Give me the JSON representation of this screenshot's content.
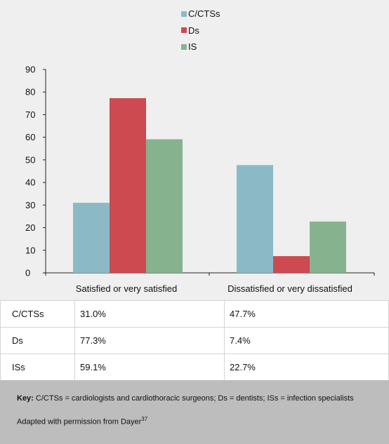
{
  "chart_data": {
    "type": "bar",
    "categories": [
      "Satisfied or very satisfied",
      "Dissatisfied or very dissatisfied"
    ],
    "series": [
      {
        "name": "C/CTSs",
        "values": [
          31.0,
          47.7
        ]
      },
      {
        "name": "Ds",
        "values": [
          77.3,
          7.4
        ]
      },
      {
        "name": "IS",
        "values": [
          59.1,
          22.7
        ]
      }
    ],
    "ylim": [
      0,
      90
    ],
    "yticks": [
      0,
      10,
      20,
      30,
      40,
      50,
      60,
      70,
      80,
      90
    ],
    "colors": [
      "#8cb9c6",
      "#cc4a50",
      "#86b38e"
    ],
    "legend_position": "top-center",
    "grid": false
  },
  "table": {
    "rows": [
      {
        "label": "C/CTSs",
        "cells": [
          "31.0%",
          "47.7%"
        ]
      },
      {
        "label": "Ds",
        "cells": [
          "77.3%",
          "7.4%"
        ]
      },
      {
        "label": "ISs",
        "cells": [
          "59.1%",
          "22.7%"
        ]
      }
    ]
  },
  "footer": {
    "key_label": "Key:",
    "key_text": " C/CTSs = cardiologists and cardiothoracic surgeons; Ds = dentists; ISs = infection specialists",
    "credit": "Adapted with permission from Dayer",
    "credit_ref": "37"
  }
}
